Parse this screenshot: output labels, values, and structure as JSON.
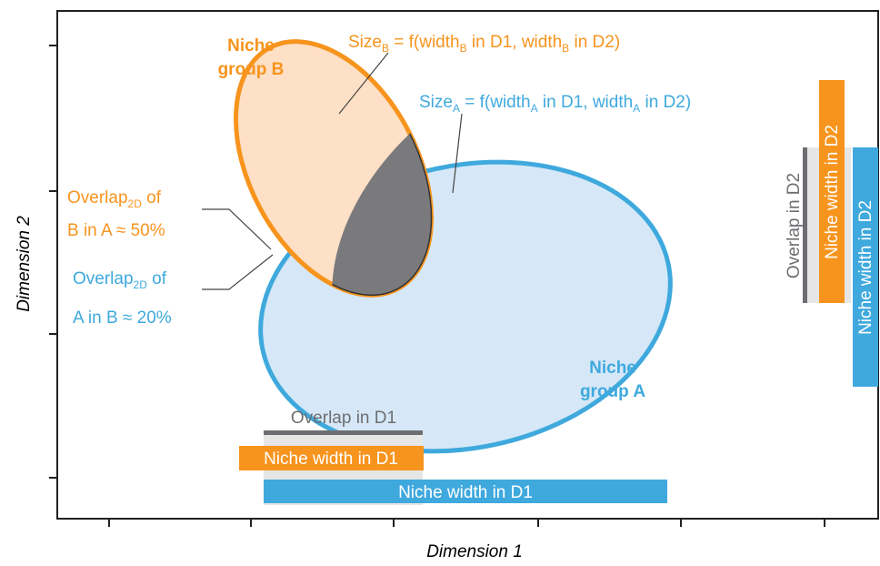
{
  "axes": {
    "x_label": "Dimension 1",
    "y_label": "Dimension 2"
  },
  "group_b": {
    "name": [
      "Niche",
      "group B"
    ],
    "size": [
      "Size",
      "B",
      " = f(width",
      "B",
      " in D1, width",
      "B",
      " in D2)"
    ]
  },
  "group_a": {
    "name": [
      "Niche",
      "group A"
    ],
    "size": [
      "Size",
      "A",
      " = f(width",
      "A",
      " in D1, width",
      "A",
      " in D2)"
    ]
  },
  "overlap_b_in_a": [
    [
      "Overlap",
      "2D",
      " of"
    ],
    [
      "B in A ≈ 50%"
    ]
  ],
  "overlap_a_in_b": [
    [
      "Overlap",
      "2D",
      " of"
    ],
    [
      "A in B ≈ 20%"
    ]
  ],
  "d1": {
    "overlap": "Overlap in D1",
    "width_b": "Niche width in D1",
    "width_a": "Niche width in D1"
  },
  "d2": {
    "overlap": "Overlap in D2",
    "width_b": "Niche width in D2",
    "width_a": "Niche width in D2"
  }
}
